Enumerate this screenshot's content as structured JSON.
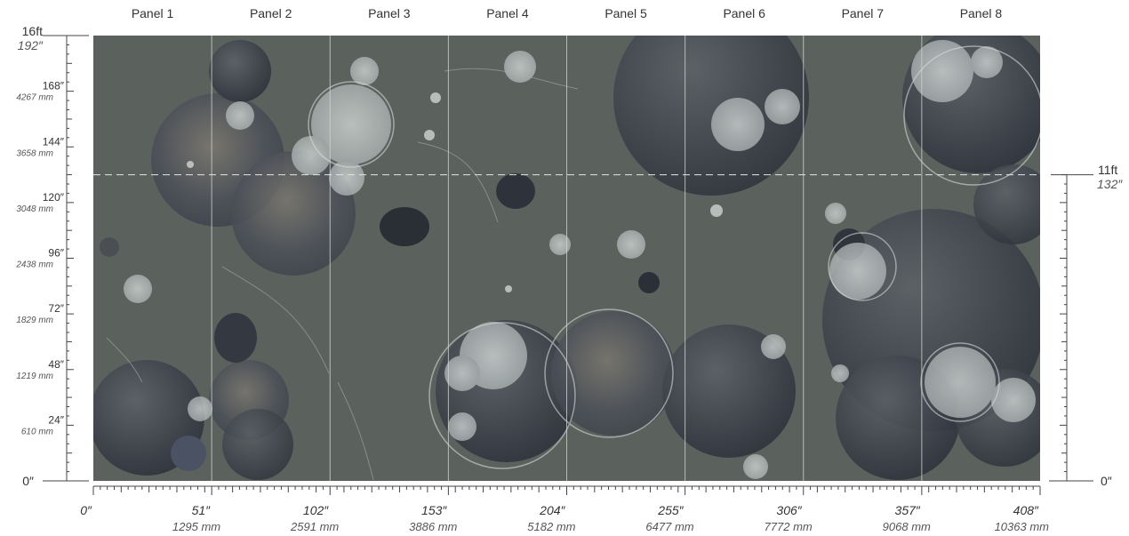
{
  "panels": {
    "labels": [
      "Panel 1",
      "Panel 2",
      "Panel 3",
      "Panel 4",
      "Panel 5",
      "Panel 6",
      "Panel 7",
      "Panel 8"
    ]
  },
  "left_ruler": {
    "top_ft": "16ft",
    "top_in": "192″",
    "zero": "0″",
    "marks": [
      {
        "inches": 168,
        "label_in": "168″",
        "label_mm": "4267 mm"
      },
      {
        "inches": 144,
        "label_in": "144″",
        "label_mm": "3658 mm"
      },
      {
        "inches": 120,
        "label_in": "120″",
        "label_mm": "3048 mm"
      },
      {
        "inches": 96,
        "label_in": "96″",
        "label_mm": "2438 mm"
      },
      {
        "inches": 72,
        "label_in": "72″",
        "label_mm": "1829 mm"
      },
      {
        "inches": 48,
        "label_in": "48″",
        "label_mm": "1219 mm"
      },
      {
        "inches": 24,
        "label_in": "24″",
        "label_mm": "610 mm"
      }
    ]
  },
  "right_ruler": {
    "height_ft": "11ft",
    "height_in": "132″",
    "zero": "0″"
  },
  "bottom_ruler": {
    "marks": [
      {
        "inches": 0,
        "label_in": "0″",
        "label_mm": ""
      },
      {
        "inches": 51,
        "label_in": "51″",
        "label_mm": "1295 mm"
      },
      {
        "inches": 102,
        "label_in": "102″",
        "label_mm": "2591 mm"
      },
      {
        "inches": 153,
        "label_in": "153″",
        "label_mm": "3886 mm"
      },
      {
        "inches": 204,
        "label_in": "204″",
        "label_mm": "5182 mm"
      },
      {
        "inches": 255,
        "label_in": "255″",
        "label_mm": "6477 mm"
      },
      {
        "inches": 306,
        "label_in": "306″",
        "label_mm": "7772 mm"
      },
      {
        "inches": 357,
        "label_in": "357″",
        "label_mm": "9068 mm"
      },
      {
        "inches": 408,
        "label_in": "408″",
        "label_mm": "10363 mm"
      }
    ]
  },
  "mural": {
    "total_width_in": 408,
    "total_height_in": 192,
    "guide_height_in": 132,
    "background_color": "#5b615d",
    "divider_color": "#cfd3d0",
    "guide_color": "#e5e5e5",
    "tick_color": "#444444"
  }
}
